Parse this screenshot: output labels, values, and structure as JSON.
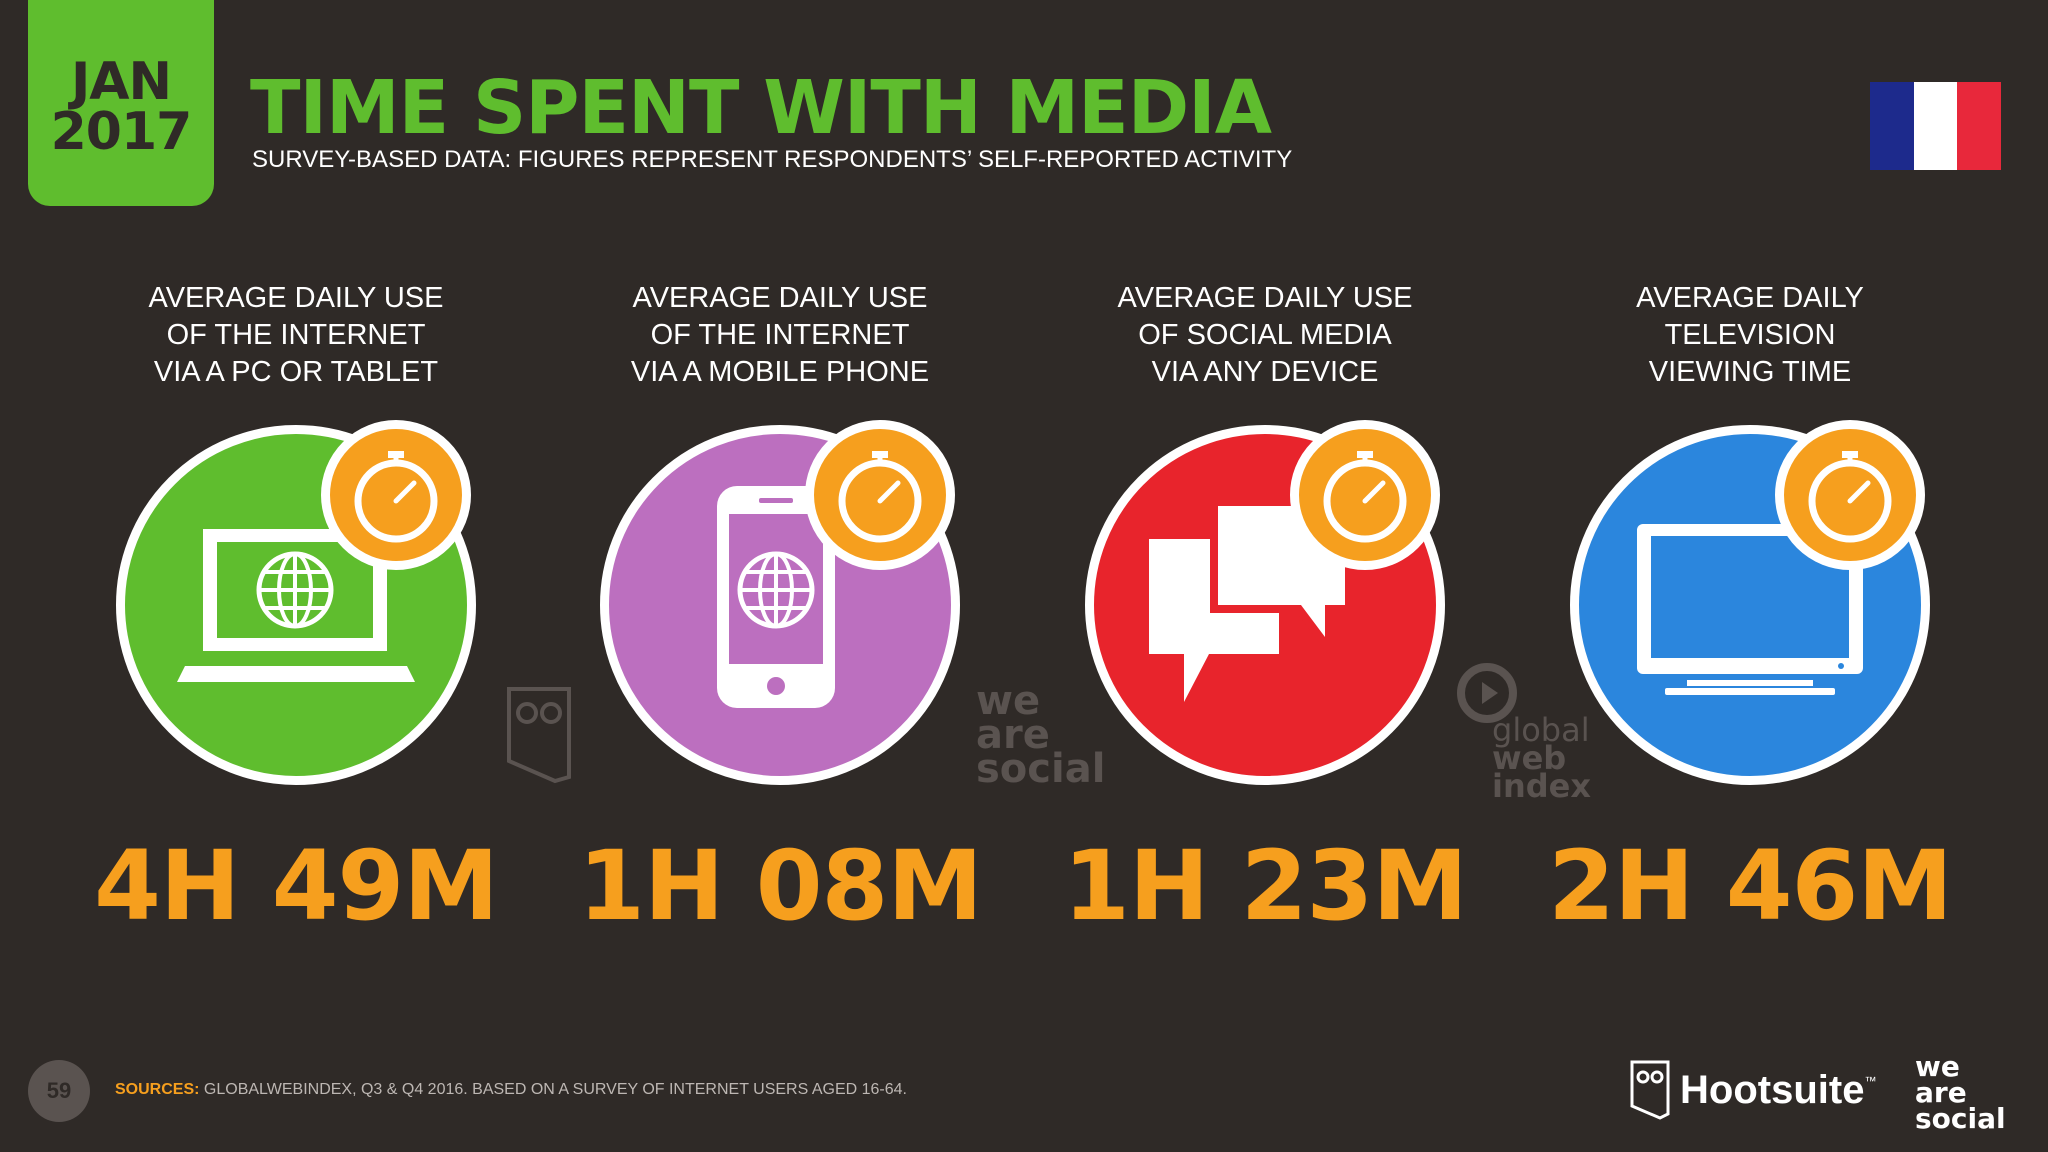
{
  "header": {
    "date_month": "JAN",
    "date_year": "2017",
    "title": "TIME SPENT WITH MEDIA",
    "subtitle": "SURVEY-BASED DATA: FIGURES REPRESENT RESPONDENTS’ SELF-REPORTED ACTIVITY"
  },
  "flag": {
    "colors": [
      "#1d2a8c",
      "#ffffff",
      "#e8283b"
    ]
  },
  "stats": [
    {
      "label_lines": [
        "AVERAGE DAILY USE",
        "OF THE INTERNET",
        "VIA A PC OR TABLET"
      ],
      "value": "4H 49M",
      "icon": "laptop-icon",
      "color": "#5fbd2e"
    },
    {
      "label_lines": [
        "AVERAGE DAILY USE",
        "OF THE INTERNET",
        "VIA A MOBILE PHONE"
      ],
      "value": "1H 08M",
      "icon": "phone-icon",
      "color": "#bc6fbf"
    },
    {
      "label_lines": [
        "AVERAGE DAILY USE",
        "OF SOCIAL MEDIA",
        "VIA ANY DEVICE"
      ],
      "value": "1H 23M",
      "icon": "chat-bubbles-icon",
      "color": "#e8242c"
    },
    {
      "label_lines": [
        "AVERAGE DAILY",
        "TELEVISION",
        "VIEWING TIME"
      ],
      "value": "2H 46M",
      "icon": "tv-icon",
      "color": "#2b86dd"
    }
  ],
  "watermarks": {
    "wearesocial": [
      "we",
      "are",
      "social"
    ],
    "gwi": [
      "global",
      "web",
      "index"
    ]
  },
  "footer": {
    "page_number": "59",
    "sources_label": "SOURCES:",
    "sources_text": "GLOBALWEBINDEX, Q3 & Q4 2016. BASED ON A SURVEY OF INTERNET USERS AGED 16-64.",
    "hootsuite": "Hootsuite",
    "hootsuite_tm": "™",
    "wearesocial": [
      "we",
      "are",
      "social"
    ]
  }
}
